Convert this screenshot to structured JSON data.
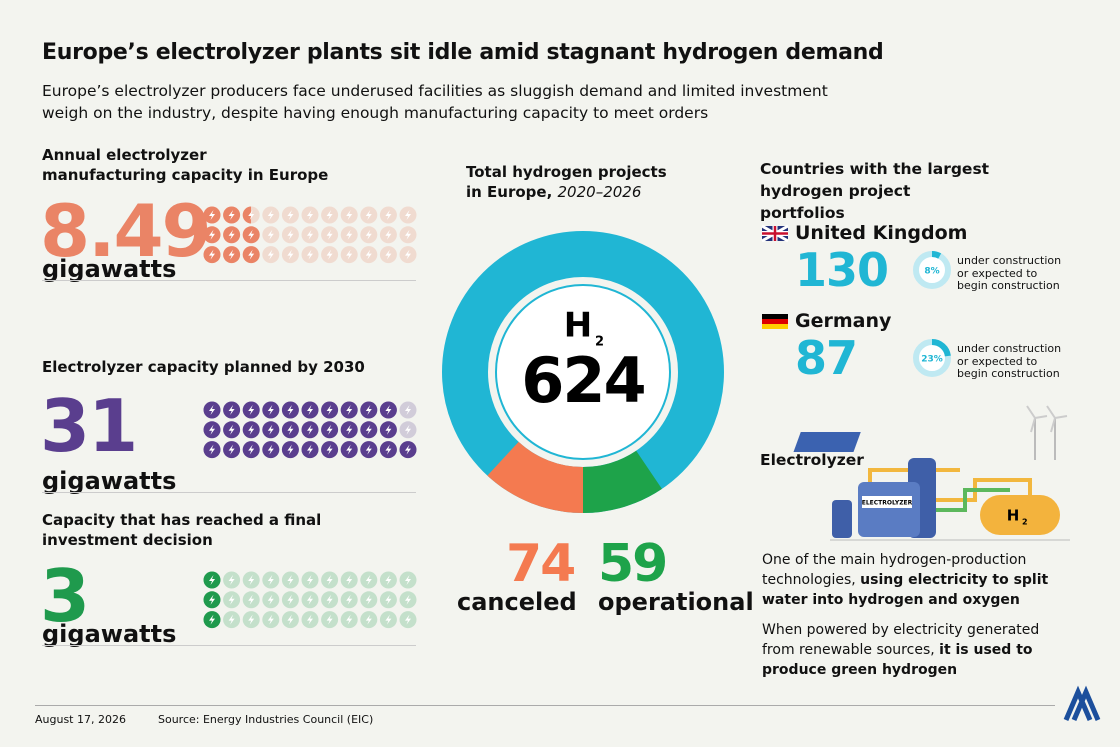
{
  "header": {
    "title": "Europe’s electrolyzer plants sit idle amid stagnant hydrogen demand",
    "subtitle": "Europe’s electrolyzer producers face underused facilities as sluggish demand and limited investment weigh on the industry, despite having enough manufacturing capacity to meet orders"
  },
  "capacity": {
    "items": [
      {
        "label": "Annual electrolyzer manufacturing capacity in Europe",
        "value": 8.49,
        "unit": "gigawatts",
        "color": "#ea8466"
      },
      {
        "label": "Electrolyzer capacity planned by 2030",
        "value": 31,
        "unit": "gigawatts",
        "color": "#5a3e8e"
      },
      {
        "label": "Capacity that has reached a final investment decision",
        "value": 3,
        "unit": "gigawatts",
        "color": "#1f9a4d"
      }
    ]
  },
  "projects": {
    "title": "Total hydrogen projects in Europe, ",
    "period": "2020–2026",
    "symbol": "H",
    "symbol_sub": "2",
    "total": 624,
    "color": "#20b6d4",
    "canceled": {
      "value": 74,
      "label": "canceled",
      "color": "#f47a50"
    },
    "operational": {
      "value": 59,
      "label": "operational",
      "color": "#1ea34a"
    }
  },
  "countries": {
    "title": "Countries with the largest hydrogen project portfolios",
    "items": [
      {
        "name": "United Kingdom",
        "projects": 130,
        "share": {
          "value": 8,
          "label": "8%"
        },
        "note": "under construction or expected to begin construction"
      },
      {
        "name": "Germany",
        "projects": 87,
        "share": {
          "value": 23,
          "label": "23%"
        },
        "note": "under construction or expected to begin construction"
      }
    ]
  },
  "electrolyzer": {
    "title": "Electrolyzer",
    "tank_label": "ELECTROLYZER",
    "h2_symbol": "H",
    "h2_sub": "2",
    "paragraphs": [
      [
        "One of the main hydrogen-production technologies, ",
        "using electricity to split water into hydrogen and oxygen"
      ],
      [
        "When powered by electricity generated from renewable sources, ",
        "it is used to produce green hydrogen"
      ]
    ]
  },
  "footer": {
    "date": "August 17, 2026",
    "source": "Source: Energy Industries Council (EIC)"
  }
}
